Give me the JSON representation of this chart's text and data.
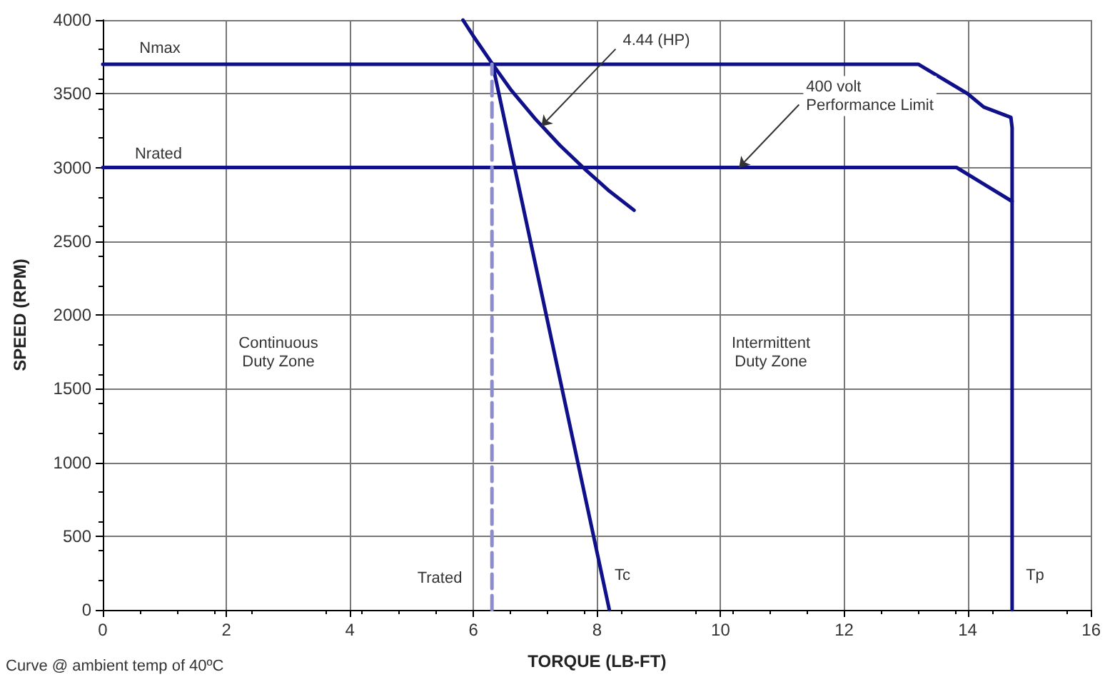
{
  "chart_data": {
    "type": "line",
    "xlabel": "TORQUE (LB-FT)",
    "ylabel": "SPEED (RPM)",
    "xlim": [
      0,
      16
    ],
    "xticks": [
      0,
      2,
      4,
      6,
      8,
      10,
      12,
      14,
      16
    ],
    "ylim": [
      0,
      4000
    ],
    "yticks": [
      0,
      500,
      1000,
      1500,
      2000,
      2500,
      3000,
      3500,
      4000
    ],
    "grid": true,
    "marker": "none",
    "series": [
      {
        "color": "#10108a",
        "x": [
          0,
          13.2,
          14.0,
          14.26,
          14.7,
          14.72,
          14.72
        ],
        "values": [
          3700,
          3700,
          3500,
          3410,
          3340,
          3270,
          0
        ]
      },
      {
        "color": "#10108a",
        "x": [
          0,
          13.82,
          14.72
        ],
        "values": [
          3000,
          3000,
          2770
        ]
      },
      {
        "color": "#10108a",
        "x": [
          5.83,
          6.0,
          6.31,
          6.6,
          7.0,
          7.4,
          7.8,
          8.2,
          8.6
        ],
        "values": [
          4000,
          3890,
          3700,
          3530,
          3330,
          3150,
          2990,
          2840,
          2710
        ]
      },
      {
        "color": "#10108a",
        "x": [
          6.31,
          8.2
        ],
        "values": [
          3700,
          0
        ]
      },
      {
        "color": "#8c8cd0",
        "line_style": "dashed",
        "x": [
          6.3,
          6.3
        ],
        "values": [
          0,
          3700
        ]
      }
    ],
    "annotations": [
      "Nmax",
      "Nrated",
      {
        "text": "4.44 (HP)",
        "x": 7.1,
        "y": 3280
      },
      {
        "text": "400 volt\nPerformance Limit",
        "x": 10.3,
        "y": 3000
      },
      "Continuous\nDuty Zone",
      "Intermittent\nDuty Zone",
      "Trated",
      "Tc",
      "Tp",
      "Curve @ ambient temp of 40ºC"
    ]
  }
}
